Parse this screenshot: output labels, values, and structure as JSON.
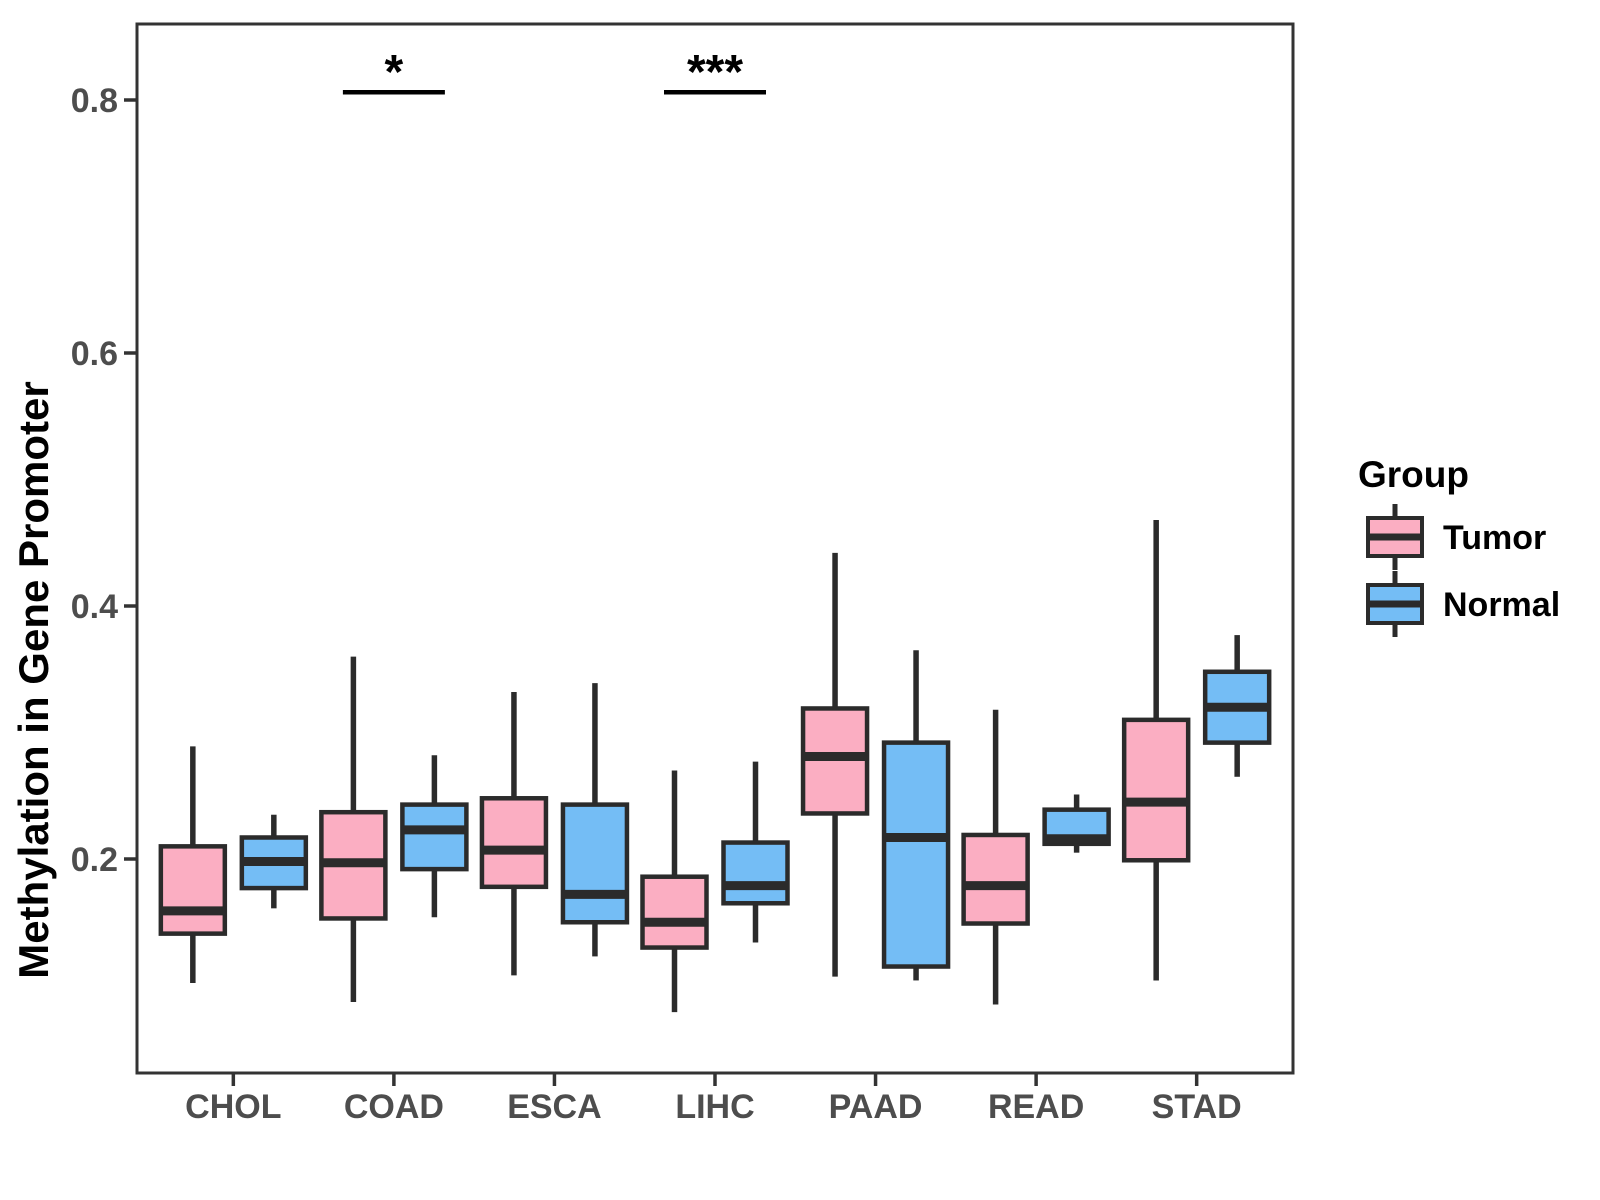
{
  "chart_data": {
    "type": "boxplot",
    "title": "",
    "ylabel": "Methylation in Gene Promoter",
    "xlabel": "",
    "categories": [
      "CHOL",
      "COAD",
      "ESCA",
      "LIHC",
      "PAAD",
      "READ",
      "STAD"
    ],
    "yticks": [
      0.2,
      0.4,
      0.6,
      0.8
    ],
    "ylim": [
      0.03,
      0.86
    ],
    "grid": "none",
    "panel_border": true,
    "legend_position": "right",
    "legend_title": "Group",
    "series": [
      {
        "name": "Tumor",
        "fill": "#FBAEC2",
        "boxes": [
          {
            "whisker_low": 0.102,
            "q1": 0.141,
            "median": 0.159,
            "q3": 0.21,
            "whisker_high": 0.289
          },
          {
            "whisker_low": 0.087,
            "q1": 0.153,
            "median": 0.197,
            "q3": 0.237,
            "whisker_high": 0.36
          },
          {
            "whisker_low": 0.108,
            "q1": 0.178,
            "median": 0.207,
            "q3": 0.248,
            "whisker_high": 0.332
          },
          {
            "whisker_low": 0.079,
            "q1": 0.13,
            "median": 0.15,
            "q3": 0.186,
            "whisker_high": 0.27
          },
          {
            "whisker_low": 0.107,
            "q1": 0.236,
            "median": 0.281,
            "q3": 0.319,
            "whisker_high": 0.442
          },
          {
            "whisker_low": 0.085,
            "q1": 0.149,
            "median": 0.179,
            "q3": 0.219,
            "whisker_high": 0.318
          },
          {
            "whisker_low": 0.104,
            "q1": 0.199,
            "median": 0.245,
            "q3": 0.31,
            "whisker_high": 0.468
          }
        ]
      },
      {
        "name": "Normal",
        "fill": "#74BDF5",
        "boxes": [
          {
            "whisker_low": 0.161,
            "q1": 0.177,
            "median": 0.198,
            "q3": 0.217,
            "whisker_high": 0.235
          },
          {
            "whisker_low": 0.154,
            "q1": 0.192,
            "median": 0.223,
            "q3": 0.243,
            "whisker_high": 0.282
          },
          {
            "whisker_low": 0.123,
            "q1": 0.15,
            "median": 0.172,
            "q3": 0.243,
            "whisker_high": 0.339
          },
          {
            "whisker_low": 0.134,
            "q1": 0.165,
            "median": 0.179,
            "q3": 0.213,
            "whisker_high": 0.277
          },
          {
            "whisker_low": 0.104,
            "q1": 0.115,
            "median": 0.217,
            "q3": 0.292,
            "whisker_high": 0.365
          },
          {
            "whisker_low": 0.205,
            "q1": 0.212,
            "median": 0.216,
            "q3": 0.239,
            "whisker_high": 0.251
          },
          {
            "whisker_low": 0.265,
            "q1": 0.292,
            "median": 0.32,
            "q3": 0.348,
            "whisker_high": 0.377
          }
        ]
      }
    ],
    "annotations": [
      {
        "category": "COAD",
        "label": "*"
      },
      {
        "category": "LIHC",
        "label": "***"
      }
    ],
    "colors": {
      "box_stroke": "#2B2B2B",
      "axis": "#333333",
      "axis_text": "#4D4D4D",
      "title_text": "#000000"
    }
  }
}
